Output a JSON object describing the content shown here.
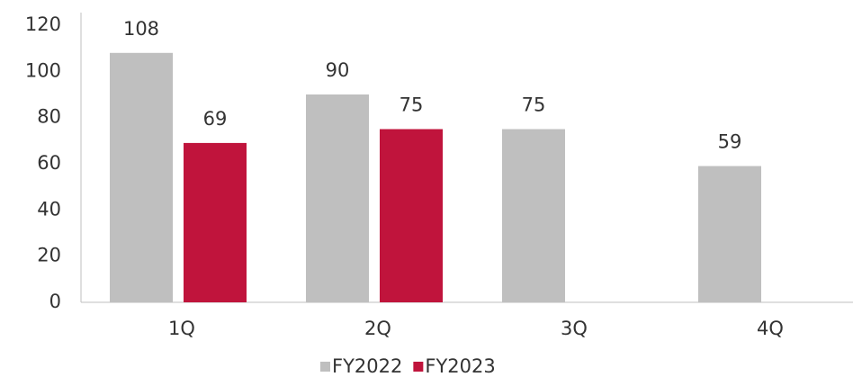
{
  "chart_data": {
    "type": "bar",
    "categories": [
      "1Q",
      "2Q",
      "3Q",
      "4Q"
    ],
    "series": [
      {
        "name": "FY2022",
        "color": "#bfbfbf",
        "values": [
          108,
          90,
          75,
          59
        ]
      },
      {
        "name": "FY2023",
        "color": "#c0143c",
        "values": [
          69,
          75,
          null,
          null
        ]
      }
    ],
    "ylim": [
      0,
      120
    ],
    "yticks": [
      0,
      20,
      40,
      60,
      80,
      100,
      120
    ],
    "grid": false,
    "legend": "bottom"
  }
}
